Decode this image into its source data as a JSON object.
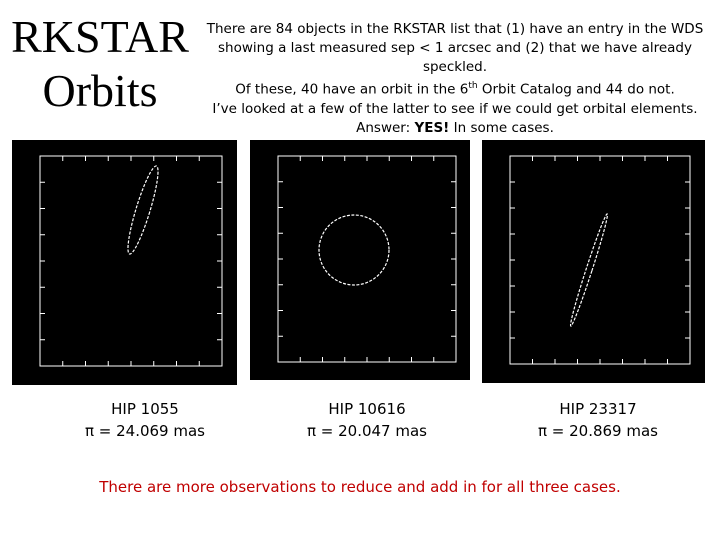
{
  "header": {
    "title_lines": [
      "RKSTAR",
      "Orbits"
    ]
  },
  "intro": {
    "line1": "There are 84 objects in the RKSTAR list that (1) have an entry in the WDS",
    "line2": "showing a last measured sep < 1 arcsec and (2) that we have already speckled.",
    "line3": [
      "Of these, 40 have an orbit in the 6",
      "th",
      " Orbit Catalog and 44 do not."
    ],
    "line4": "I’ve looked at a few of the latter to see if we could get orbital elements.",
    "line5": [
      "Answer: ",
      "YES!",
      " In some cases."
    ]
  },
  "panels": [
    {
      "name": "HIP 1055",
      "parallax": "π = 24.069 mas"
    },
    {
      "name": "HIP 10616",
      "parallax": "π = 20.047 mas"
    },
    {
      "name": "HIP 23317",
      "parallax": "π = 20.869 mas"
    }
  ],
  "footer": "There are more observations to reduce and add in for all three cases."
}
